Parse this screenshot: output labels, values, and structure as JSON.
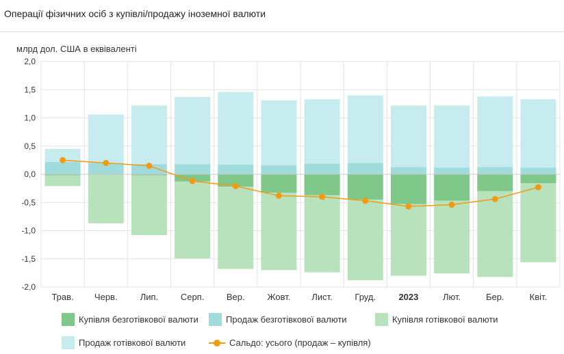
{
  "title": "Операції фізичних осіб з купівлі/продажу іноземної валюти",
  "chart_data": {
    "type": "bar",
    "ylabel": "млрд дол. США в еквіваленті",
    "ylim": [
      -2.0,
      2.0
    ],
    "yticks": [
      "2,0",
      "1,5",
      "1,0",
      "0,5",
      "0,0",
      "-0,5",
      "-1,0",
      "-1,5",
      "-2,0"
    ],
    "ytick_values": [
      2.0,
      1.5,
      1.0,
      0.5,
      0.0,
      -0.5,
      -1.0,
      -1.5,
      -2.0
    ],
    "categories": [
      "Трав.",
      "Черв.",
      "Лип.",
      "Серп.",
      "Вер.",
      "Жовт.",
      "Лист.",
      "Груд.",
      "2023",
      "Лют.",
      "Бер.",
      "Квіт."
    ],
    "bold_category": "2023",
    "series": [
      {
        "name": "Купівля безготівкової валюти",
        "kind": "bar",
        "color": "#80c78a",
        "values": [
          -0.02,
          -0.01,
          -0.02,
          -0.13,
          -0.22,
          -0.33,
          -0.37,
          -0.45,
          -0.53,
          -0.47,
          -0.3,
          -0.16
        ]
      },
      {
        "name": "Продаж безготівкової валюти",
        "kind": "bar",
        "color": "#a0dcdc",
        "values": [
          0.22,
          0.2,
          0.18,
          0.18,
          0.17,
          0.16,
          0.19,
          0.2,
          0.13,
          0.12,
          0.13,
          0.12
        ]
      },
      {
        "name": "Купівля готівкової валюти",
        "kind": "bar",
        "color": "#b8e2bc",
        "values": [
          -0.19,
          -0.86,
          -1.06,
          -1.36,
          -1.46,
          -1.37,
          -1.37,
          -1.43,
          -1.27,
          -1.29,
          -1.52,
          -1.4
        ]
      },
      {
        "name": "Продаж готівкової валюти",
        "kind": "bar",
        "color": "#c6ecef",
        "values": [
          0.23,
          0.86,
          1.04,
          1.19,
          1.29,
          1.15,
          1.14,
          1.2,
          1.09,
          1.1,
          1.25,
          1.21
        ]
      },
      {
        "name": "Сальдо: усього (продаж – купівля)",
        "kind": "line",
        "color": "#f29a12",
        "values": [
          0.25,
          0.2,
          0.15,
          -0.12,
          -0.21,
          -0.38,
          -0.4,
          -0.47,
          -0.57,
          -0.54,
          -0.44,
          -0.23
        ]
      }
    ]
  }
}
